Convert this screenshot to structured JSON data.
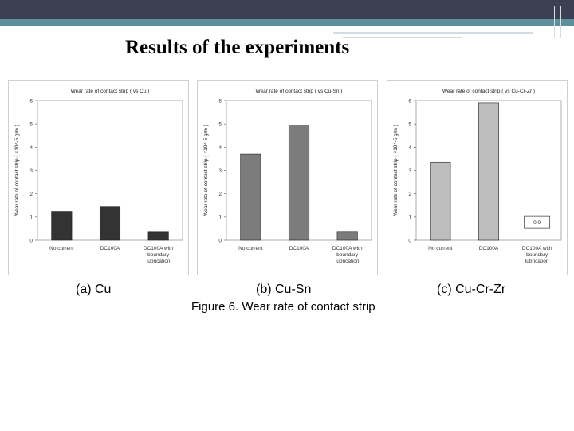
{
  "slide": {
    "title": "Results of the experiments"
  },
  "figure_caption": "Figure 6.  Wear rate of contact strip",
  "chart_data": [
    {
      "type": "bar",
      "title": "Wear rate of contact strip ( vs Cu )",
      "ylabel": "Wear rate of contact strip ( ×10^-5 g/m )",
      "subcaption": "(a) Cu",
      "categories": [
        [
          "No current"
        ],
        [
          "DC100A"
        ],
        [
          "DC100A with",
          "boundary",
          "lubrication"
        ]
      ],
      "values": [
        1.25,
        1.45,
        0.35
      ],
      "ylim": [
        0,
        6
      ],
      "yticks": [
        "0",
        "1",
        "2",
        "3",
        "4",
        "5",
        "6"
      ],
      "bar_color": "#333333"
    },
    {
      "type": "bar",
      "title": "Wear rate of contact strip ( vs Cu-Sn )",
      "ylabel": "Wear rate of contact strip ( ×10^-5 g/m )",
      "subcaption": "(b) Cu-Sn",
      "categories": [
        [
          "No current"
        ],
        [
          "DC100A"
        ],
        [
          "DC100A with",
          "boundary",
          "lubrication"
        ]
      ],
      "values": [
        3.7,
        4.95,
        0.35
      ],
      "ylim": [
        0,
        6
      ],
      "yticks": [
        "0",
        "1",
        "2",
        "3",
        "4",
        "5",
        "6"
      ],
      "bar_color": "#7c7c7c"
    },
    {
      "type": "bar",
      "title": "Wear rate of contact strip ( vs Cu-Cr-Zr )",
      "ylabel": "Wear rate of contact strip ( ×10^-5 g/m )",
      "subcaption": "(c) Cu-Cr-Zr",
      "categories": [
        [
          "No current"
        ],
        [
          "DC100A"
        ],
        [
          "DC100A with",
          "boundary",
          "lubrication"
        ]
      ],
      "values": [
        3.35,
        5.9,
        0
      ],
      "ylim": [
        0,
        6
      ],
      "yticks": [
        "0",
        "1",
        "2",
        "3",
        "4",
        "5",
        "6"
      ],
      "bar_color": "#bdbdbd",
      "annotation": "0.0"
    }
  ]
}
